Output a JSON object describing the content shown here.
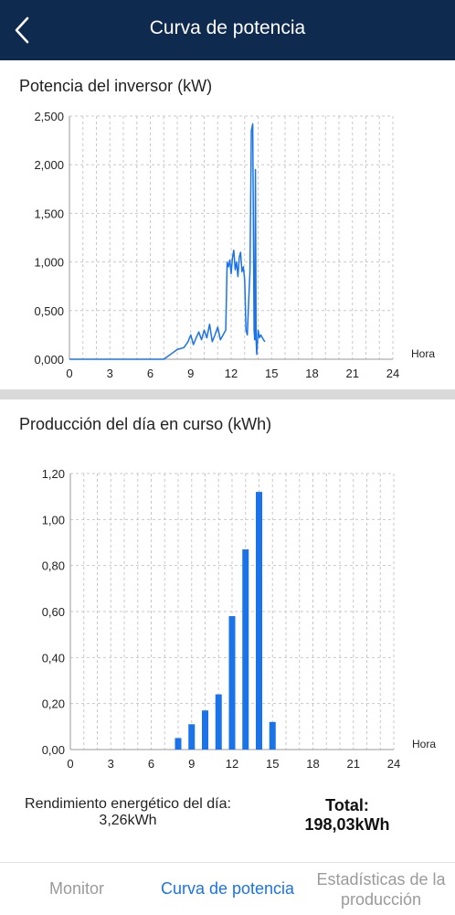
{
  "header": {
    "title": "Curva de potencia"
  },
  "power_chart": {
    "title": "Potencia del inversor (kW)",
    "xunit": "Hora",
    "yticks": [
      "0,000",
      "0,500",
      "1,000",
      "1,500",
      "2,000",
      "2,500"
    ],
    "xticks": [
      "0",
      "3",
      "6",
      "9",
      "12",
      "15",
      "18",
      "21",
      "24"
    ]
  },
  "energy_chart": {
    "title": "Producción del día en curso (kWh)",
    "xunit": "Hora",
    "yticks": [
      "0,00",
      "0,20",
      "0,40",
      "0,60",
      "0,80",
      "1,00",
      "1,20"
    ],
    "xticks": [
      "0",
      "3",
      "6",
      "9",
      "12",
      "15",
      "18",
      "21",
      "24"
    ]
  },
  "summary": {
    "daily_label": "Rendimiento energético del día:",
    "daily_value": "3,26kWh",
    "total_label": "Total:",
    "total_value": "198,03kWh"
  },
  "tabs": {
    "monitor": "Monitor",
    "power_curve": "Curva de potencia",
    "stats": "Estadísticas de la producción"
  },
  "colors": {
    "header": "#0f2a4f",
    "series": "#1a73e8",
    "active_tab": "#1a73e8"
  },
  "chart_data": [
    {
      "type": "line",
      "title": "Potencia del inversor (kW)",
      "xlabel": "Hora",
      "ylabel": "",
      "xlim": [
        0,
        24
      ],
      "ylim": [
        0,
        2.5
      ],
      "grid": true,
      "series": [
        {
          "values": [
            [
              0,
              0
            ],
            [
              7,
              0
            ],
            [
              7.5,
              0.05
            ],
            [
              8,
              0.1
            ],
            [
              8.5,
              0.12
            ],
            [
              8.8,
              0.18
            ],
            [
              9.0,
              0.25
            ],
            [
              9.2,
              0.15
            ],
            [
              9.4,
              0.22
            ],
            [
              9.6,
              0.28
            ],
            [
              9.8,
              0.2
            ],
            [
              10.0,
              0.3
            ],
            [
              10.2,
              0.22
            ],
            [
              10.4,
              0.36
            ],
            [
              10.6,
              0.18
            ],
            [
              10.8,
              0.25
            ],
            [
              11.0,
              0.33
            ],
            [
              11.2,
              0.2
            ],
            [
              11.4,
              0.25
            ],
            [
              11.6,
              0.3
            ],
            [
              11.7,
              1.0
            ],
            [
              11.8,
              0.95
            ],
            [
              11.9,
              1.02
            ],
            [
              12.0,
              0.88
            ],
            [
              12.1,
              1.05
            ],
            [
              12.2,
              1.12
            ],
            [
              12.3,
              0.92
            ],
            [
              12.4,
              1.0
            ],
            [
              12.5,
              0.85
            ],
            [
              12.6,
              1.05
            ],
            [
              12.7,
              1.1
            ],
            [
              12.8,
              0.9
            ],
            [
              12.9,
              0.95
            ],
            [
              13.0,
              0.82
            ],
            [
              13.1,
              0.3
            ],
            [
              13.2,
              0.25
            ],
            [
              13.3,
              0.6
            ],
            [
              13.4,
              0.9
            ],
            [
              13.5,
              2.35
            ],
            [
              13.6,
              2.42
            ],
            [
              13.7,
              0.3
            ],
            [
              13.75,
              0.2
            ],
            [
              13.8,
              1.95
            ],
            [
              13.85,
              0.2
            ],
            [
              13.9,
              0.05
            ],
            [
              14.0,
              0.3
            ],
            [
              14.1,
              0.22
            ],
            [
              14.2,
              0.25
            ],
            [
              14.4,
              0.2
            ],
            [
              14.5,
              0.18
            ]
          ]
        }
      ]
    },
    {
      "type": "bar",
      "title": "Producción del día en curso (kWh)",
      "xlabel": "Hora",
      "ylabel": "",
      "xlim": [
        0,
        24
      ],
      "ylim": [
        0,
        1.2
      ],
      "grid": true,
      "x": [
        8,
        9,
        10,
        11,
        12,
        13,
        14,
        15
      ],
      "values": [
        0.05,
        0.11,
        0.17,
        0.24,
        0.58,
        0.87,
        1.12,
        0.12
      ]
    }
  ]
}
